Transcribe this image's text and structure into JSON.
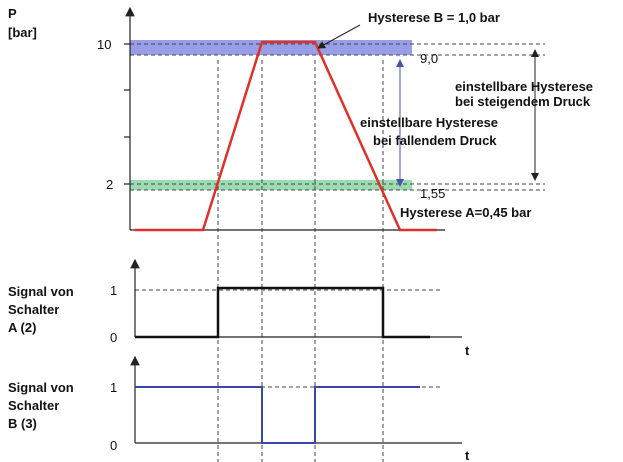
{
  "pressure_chart": {
    "axis_label": "P",
    "axis_unit": "[bar]",
    "tick_high": "10",
    "tick_low": "2",
    "hysteresis_b": "Hysterese B = 1,0 bar",
    "hysteresis_a": "Hysterese A=0,45 bar",
    "level_b": "9,0",
    "level_a": "1,55",
    "rising_note": [
      "einstellbare Hysterese",
      "bei steigendem Druck"
    ],
    "falling_note": [
      "einstellbare Hysterese",
      "bei fallendem Druck"
    ]
  },
  "signal_a": {
    "label": [
      "Signal von",
      "Schalter",
      "A (2)"
    ],
    "tick_high": "1",
    "tick_low": "0",
    "axis_label": "t"
  },
  "signal_b": {
    "label": [
      "Signal von",
      "Schalter",
      "B (3)"
    ],
    "tick_high": "1",
    "tick_low": "0",
    "axis_label": "t"
  }
}
